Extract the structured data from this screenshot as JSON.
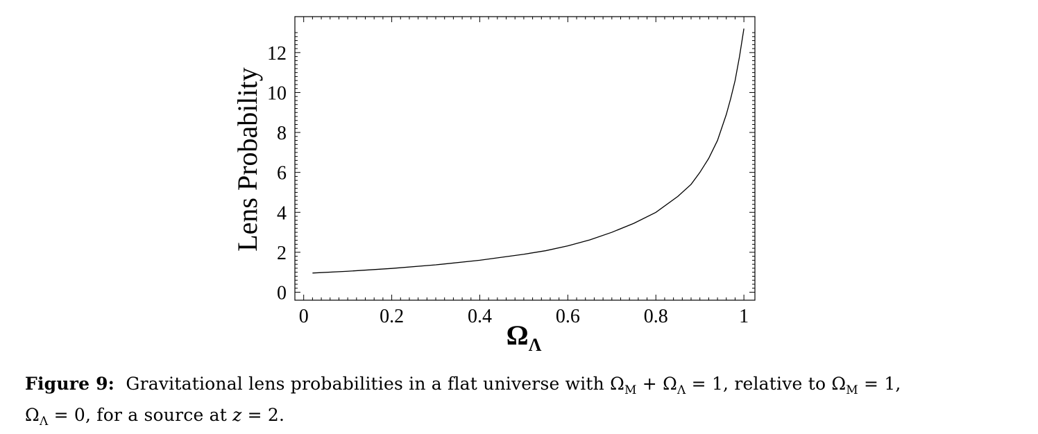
{
  "chart_data": {
    "type": "line",
    "title": "",
    "xlabel_base": "Ω",
    "xlabel_sub": "Λ",
    "ylabel": "Lens Probability",
    "xlim": [
      -0.02,
      1.025
    ],
    "ylim": [
      -0.4,
      13.8
    ],
    "xticks": [
      0,
      0.2,
      0.4,
      0.6,
      0.8,
      1
    ],
    "xtick_labels": [
      "0",
      "0.2",
      "0.4",
      "0.6",
      "0.8",
      "1"
    ],
    "yticks": [
      0,
      2,
      4,
      6,
      8,
      10,
      12
    ],
    "ytick_labels": [
      "0",
      "2",
      "4",
      "6",
      "8",
      "10",
      "12"
    ],
    "grid": false,
    "series": [
      {
        "x": [
          0.02,
          0.1,
          0.2,
          0.3,
          0.4,
          0.5,
          0.55,
          0.6,
          0.65,
          0.7,
          0.75,
          0.8,
          0.85,
          0.88,
          0.9,
          0.92,
          0.94,
          0.96,
          0.97,
          0.98,
          0.99,
          1.0
        ],
        "y": [
          0.96,
          1.05,
          1.19,
          1.37,
          1.6,
          1.9,
          2.08,
          2.32,
          2.62,
          3.0,
          3.45,
          4.0,
          4.8,
          5.4,
          6.0,
          6.7,
          7.6,
          8.9,
          9.7,
          10.6,
          11.8,
          13.2
        ]
      }
    ]
  },
  "caption": {
    "label": "Figure 9:",
    "line1_text": "Gravitational lens probabilities in a flat universe with Ω",
    "sub_M": "M",
    "plus": " + Ω",
    "sub_L": "Λ",
    "eq1": " = 1, relative to Ω",
    "sub_M2": "M",
    "eq2": " = 1,",
    "line2_omega": "Ω",
    "sub_L2": "Λ",
    "line2_text": " = 0, for a source at ",
    "z": "z",
    "line2_end": " = 2."
  }
}
